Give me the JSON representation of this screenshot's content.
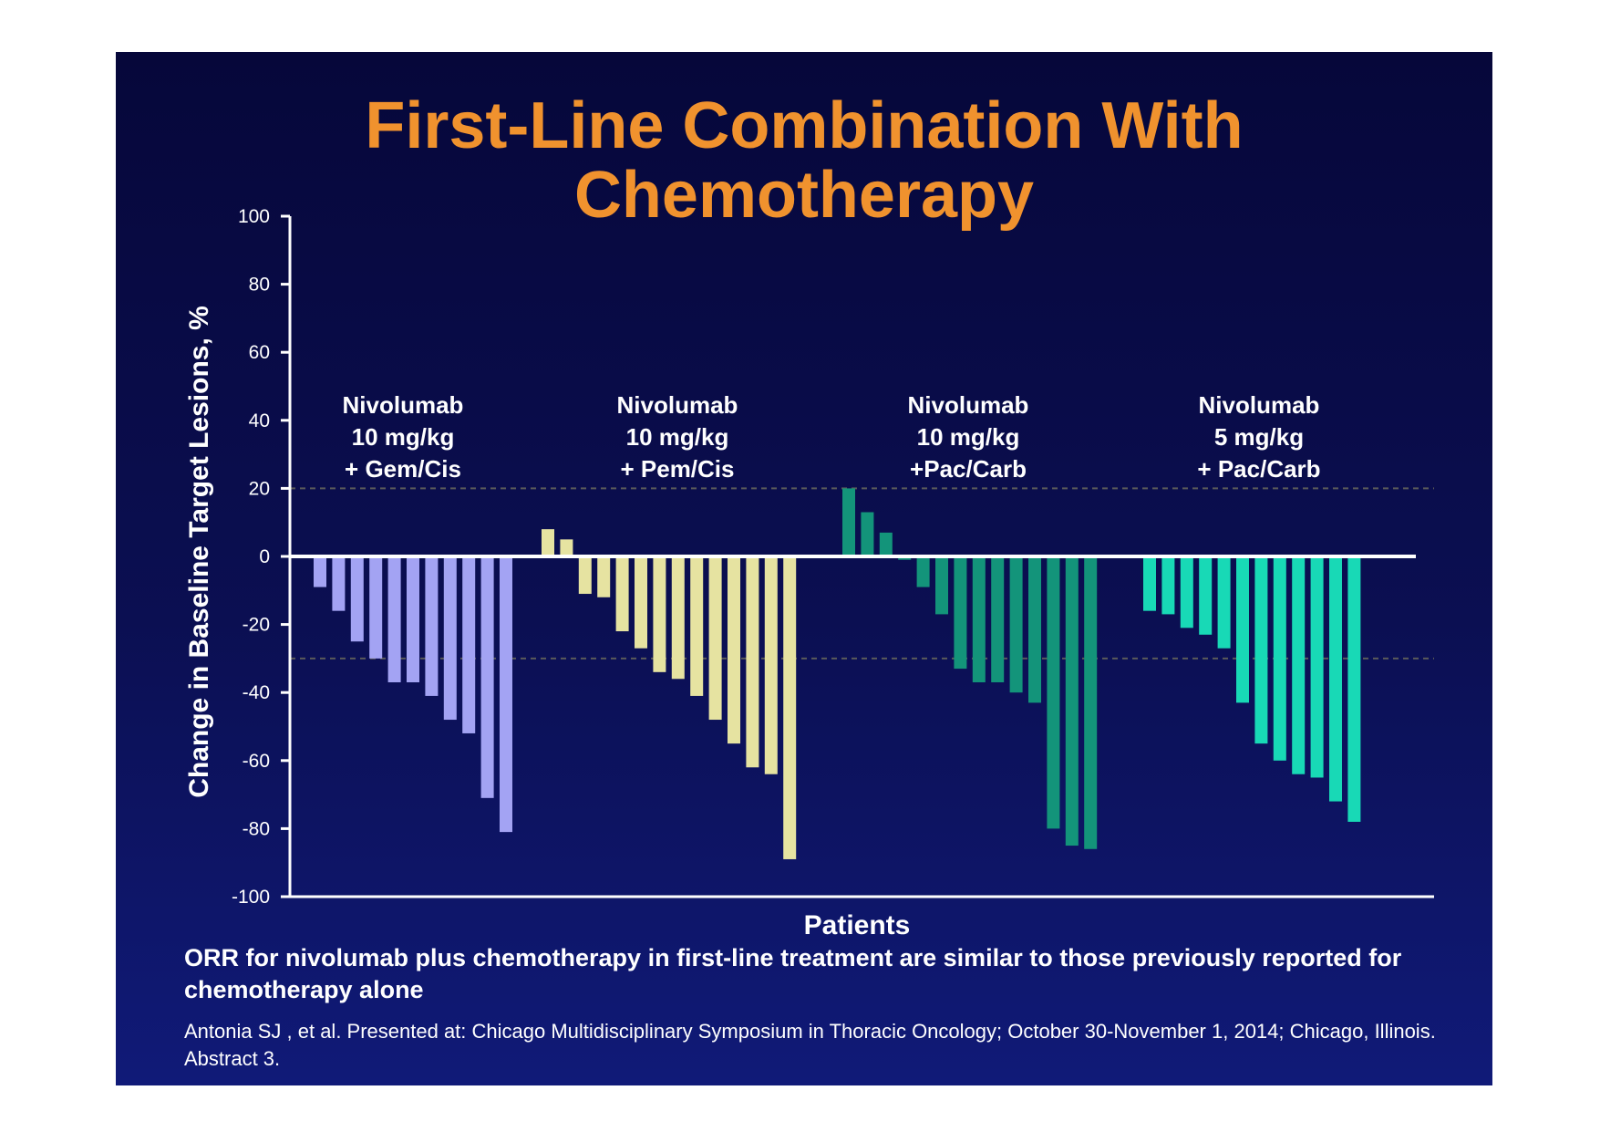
{
  "title_lines": [
    "First-Line Combination With",
    "Chemotherapy"
  ],
  "footnote": "ORR for nivolumab plus chemotherapy in first-line treatment are similar to those previously reported for chemotherapy alone",
  "citation": "Antonia SJ , et al. Presented at: Chicago Multidisciplinary Symposium in Thoracic Oncology; October 30-November 1, 2014; Chicago, Illinois. Abstract 3.",
  "colors": {
    "background": "#0b0f52",
    "title": "#f0922e",
    "text": "#ffffff",
    "reference_line": "#5a5a5a"
  },
  "chart_data": {
    "type": "bar",
    "title": "First-Line Combination With Chemotherapy",
    "xlabel": "Patients",
    "ylabel": "Change in Baseline Target Lesions, %",
    "ylim": [
      -100,
      100
    ],
    "yticks": [
      100,
      80,
      60,
      40,
      20,
      0,
      -20,
      -40,
      -60,
      -80,
      -100
    ],
    "reference_lines": [
      20,
      -30
    ],
    "grid": false,
    "groups": [
      {
        "label_lines": [
          "Nivolumab",
          "10 mg/kg",
          "+ Gem/Cis"
        ],
        "color": "#a3a3f3",
        "values": [
          -9,
          -16,
          -25,
          -30,
          -37,
          -37,
          -41,
          -48,
          -52,
          -71,
          -81
        ]
      },
      {
        "label_lines": [
          "Nivolumab",
          "10 mg/kg",
          "+ Pem/Cis"
        ],
        "color": "#e6e3a1",
        "values": [
          8,
          5,
          -11,
          -12,
          -22,
          -27,
          -34,
          -36,
          -41,
          -48,
          -55,
          -62,
          -64,
          -89
        ]
      },
      {
        "label_lines": [
          "Nivolumab",
          "10 mg/kg",
          "+Pac/Carb"
        ],
        "color": "#13947a",
        "values": [
          20,
          13,
          7,
          -1,
          -9,
          -17,
          -33,
          -37,
          -37,
          -40,
          -43,
          -80,
          -85,
          -86
        ]
      },
      {
        "label_lines": [
          "Nivolumab",
          "5 mg/kg",
          "+ Pac/Carb"
        ],
        "color": "#18d9b6",
        "values": [
          -16,
          -17,
          -21,
          -23,
          -27,
          -43,
          -55,
          -60,
          -64,
          -65,
          -72,
          -78
        ]
      }
    ]
  }
}
